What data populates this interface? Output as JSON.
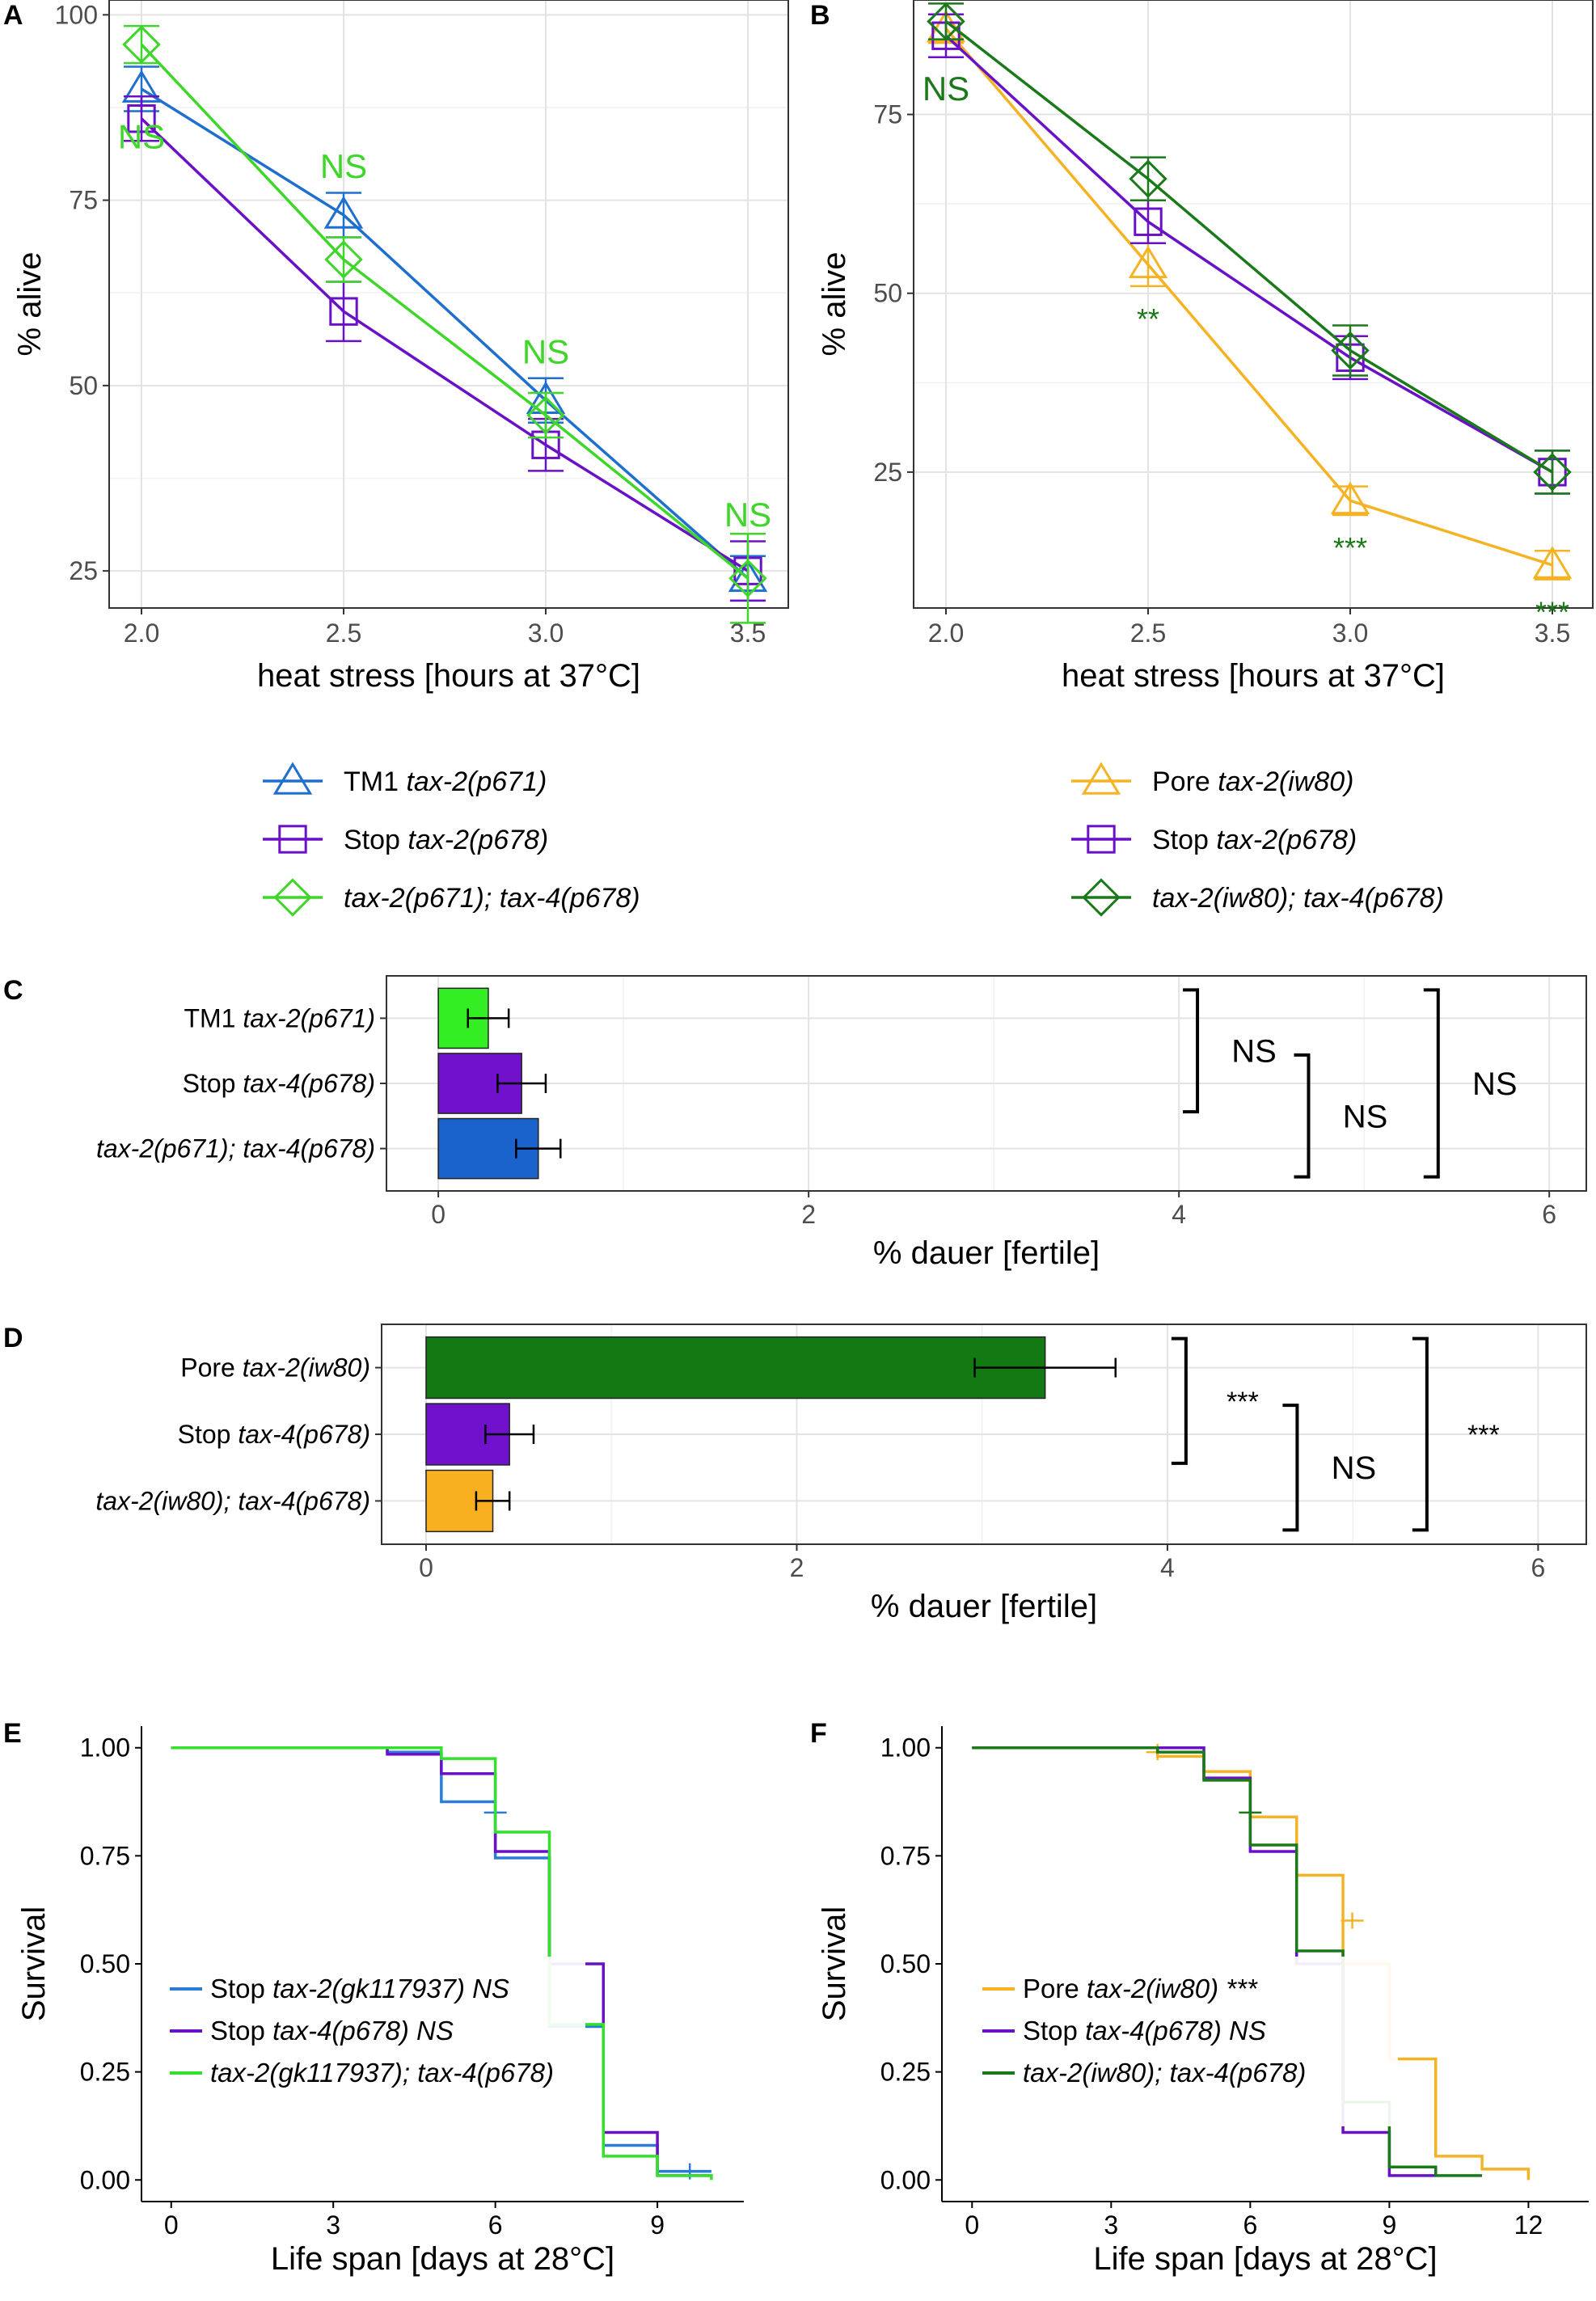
{
  "chart_data": [
    {
      "panel_letter": "A",
      "type": "line",
      "xlabel": "heat stress [hours at 37°C]",
      "ylabel": "% alive",
      "x": [
        2.0,
        2.5,
        3.0,
        3.5
      ],
      "xticks": [
        "2.0",
        "2.5",
        "3.0",
        "3.5"
      ],
      "yticks": [
        25,
        50,
        75,
        100
      ],
      "ylim": [
        20,
        102
      ],
      "series": [
        {
          "name": "TM1 tax-2(p671)",
          "label": [
            {
              "t": "TM1 ",
              "i": false
            },
            {
              "t": "tax-2(p671)",
              "i": true
            }
          ],
          "color": "#1f6fce",
          "shape": "triangle",
          "values": [
            90,
            73,
            48,
            24
          ],
          "err": [
            3,
            3,
            3,
            3
          ]
        },
        {
          "name": "Stop tax-2(p678)",
          "label": [
            {
              "t": "Stop ",
              "i": false
            },
            {
              "t": "tax-2(p678)",
              "i": true
            }
          ],
          "color": "#6a11c8",
          "shape": "square",
          "values": [
            86,
            60,
            42,
            25
          ],
          "err": [
            3,
            4,
            3.5,
            4
          ]
        },
        {
          "name": "tax-2(p671); tax-4(p678)",
          "label": [
            {
              "t": "tax-2(p671); tax-4(p678)",
              "i": true
            }
          ],
          "color": "#3fd62a",
          "shape": "diamond",
          "values": [
            96,
            67,
            46,
            24
          ],
          "err": [
            2.5,
            3,
            3,
            6
          ]
        }
      ],
      "annotations": [
        {
          "x": 2.0,
          "y": 82,
          "text": "NS",
          "color": "#3fd62a"
        },
        {
          "x": 2.5,
          "y": 78,
          "text": "NS",
          "color": "#3fd62a"
        },
        {
          "x": 3.0,
          "y": 53,
          "text": "NS",
          "color": "#3fd62a"
        },
        {
          "x": 3.5,
          "y": 31,
          "text": "NS",
          "color": "#3fd62a"
        }
      ]
    },
    {
      "panel_letter": "B",
      "type": "line",
      "xlabel": "heat stress [hours at 37°C]",
      "ylabel": "% alive",
      "x": [
        2.0,
        2.5,
        3.0,
        3.5
      ],
      "xticks": [
        "2.0",
        "2.5",
        "3.0",
        "3.5"
      ],
      "yticks": [
        25,
        50,
        75
      ],
      "ylim": [
        6,
        91
      ],
      "series": [
        {
          "name": "Pore tax-2(iw80)",
          "label": [
            {
              "t": "Pore ",
              "i": false
            },
            {
              "t": "tax-2(iw80)",
              "i": true
            }
          ],
          "color": "#f5b324",
          "shape": "triangle",
          "values": [
            87,
            54,
            21,
            12
          ],
          "err": [
            2,
            3,
            2,
            2
          ]
        },
        {
          "name": "Stop tax-2(p678)",
          "label": [
            {
              "t": "Stop ",
              "i": false
            },
            {
              "t": "tax-2(p678)",
              "i": true
            }
          ],
          "color": "#6a11c8",
          "shape": "square",
          "values": [
            86,
            60,
            41,
            25
          ],
          "err": [
            3,
            3,
            3,
            3
          ]
        },
        {
          "name": "tax-2(iw80); tax-4(p678)",
          "label": [
            {
              "t": "tax-2(iw80); tax-4(p678)",
              "i": true
            }
          ],
          "color": "#1a7a1a",
          "shape": "diamond",
          "values": [
            88,
            66,
            42,
            25
          ],
          "err": [
            2.5,
            3,
            3.5,
            3
          ]
        }
      ],
      "annotations": [
        {
          "x": 2.0,
          "y": 77,
          "text": "NS",
          "color": "#1a7a1a"
        },
        {
          "x": 2.5,
          "y": 45,
          "text": "**",
          "color": "#1a7a1a"
        },
        {
          "x": 3.0,
          "y": 13,
          "text": "***",
          "color": "#1a7a1a"
        },
        {
          "x": 3.5,
          "y": 4,
          "text": "***",
          "color": "#1a7a1a"
        }
      ]
    },
    {
      "panel_letter": "C",
      "type": "bar",
      "orientation": "horizontal",
      "xlabel": "% dauer [fertile]",
      "categories": [
        [
          {
            "t": "TM1 ",
            "i": false
          },
          {
            "t": "tax-2(p671)",
            "i": true
          }
        ],
        [
          {
            "t": "Stop ",
            "i": false
          },
          {
            "t": "tax-4(p678)",
            "i": true
          }
        ],
        [
          {
            "t": "tax-2(p671); tax-4(p678)",
            "i": true
          }
        ]
      ],
      "values": [
        0.27,
        0.45,
        0.54
      ],
      "err": [
        0.11,
        0.13,
        0.12
      ],
      "colors": [
        "#33ee22",
        "#7011cc",
        "#1a62cc"
      ],
      "xticks": [
        0,
        2,
        4,
        6
      ],
      "xlim": [
        -0.28,
        6.2
      ],
      "significance": [
        {
          "from": 0,
          "to": 1,
          "text": "NS"
        },
        {
          "from": 1,
          "to": 2,
          "text": "NS"
        },
        {
          "from": 0,
          "to": 2,
          "text": "NS"
        }
      ]
    },
    {
      "panel_letter": "D",
      "type": "bar",
      "orientation": "horizontal",
      "xlabel": "% dauer [fertile]",
      "categories": [
        [
          {
            "t": "Pore ",
            "i": false
          },
          {
            "t": "tax-2(iw80)",
            "i": true
          }
        ],
        [
          {
            "t": "Stop ",
            "i": false
          },
          {
            "t": "tax-4(p678)",
            "i": true
          }
        ],
        [
          {
            "t": "tax-2(iw80); tax-4(p678)",
            "i": true
          }
        ]
      ],
      "values": [
        3.34,
        0.45,
        0.36
      ],
      "err": [
        0.38,
        0.13,
        0.09
      ],
      "colors": [
        "#137a13",
        "#7011cc",
        "#f8b020"
      ],
      "xticks": [
        0,
        2,
        4,
        6
      ],
      "xlim": [
        -0.24,
        6.26
      ],
      "significance": [
        {
          "from": 0,
          "to": 1,
          "text": "***"
        },
        {
          "from": 1,
          "to": 2,
          "text": "NS"
        },
        {
          "from": 0,
          "to": 2,
          "text": "***"
        }
      ]
    },
    {
      "panel_letter": "E",
      "type": "line",
      "subtype": "survival-step",
      "xlabel": "Life span [days at 28°C]",
      "ylabel": "Survival",
      "xticks": [
        0,
        3,
        6,
        9
      ],
      "yticks": [
        "0.00",
        "0.25",
        "0.50",
        "0.75",
        "1.00"
      ],
      "xlim": [
        -0.55,
        10.6
      ],
      "ylim": [
        -0.05,
        1.05
      ],
      "series": [
        {
          "name": "Stop tax-2(gk117937) NS",
          "label": [
            {
              "t": "Stop ",
              "i": false
            },
            {
              "t": "tax-2(gk117937) NS",
              "i": true
            }
          ],
          "color": "#2b7bd9",
          "steps": [
            [
              0,
              1.0
            ],
            [
              4,
              0.99
            ],
            [
              5,
              0.875
            ],
            [
              6,
              0.745
            ],
            [
              7,
              0.355
            ],
            [
              8,
              0.08
            ],
            [
              9,
              0.02
            ],
            [
              10,
              0.02
            ]
          ],
          "censor": [
            [
              6,
              0.85
            ],
            [
              9.6,
              0.02
            ]
          ]
        },
        {
          "name": "Stop tax-4(p678) NS",
          "label": [
            {
              "t": "Stop ",
              "i": false
            },
            {
              "t": "tax-4(p678) NS",
              "i": true
            }
          ],
          "color": "#6a11c8",
          "steps": [
            [
              0,
              1.0
            ],
            [
              4,
              0.985
            ],
            [
              5,
              0.94
            ],
            [
              6,
              0.76
            ],
            [
              7,
              0.5
            ],
            [
              8,
              0.11
            ],
            [
              9,
              0.01
            ],
            [
              10,
              0.01
            ]
          ],
          "censor": []
        },
        {
          "name": "tax-2(gk117937); tax-4(p678)",
          "label": [
            {
              "t": "tax-2(gk117937); tax-4(p678)",
              "i": true
            }
          ],
          "color": "#33e12b",
          "steps": [
            [
              0,
              1.0
            ],
            [
              5,
              0.975
            ],
            [
              6,
              0.805
            ],
            [
              7,
              0.36
            ],
            [
              8,
              0.055
            ],
            [
              9,
              0.01
            ],
            [
              10,
              0.0
            ]
          ],
          "censor": []
        }
      ]
    },
    {
      "panel_letter": "F",
      "type": "line",
      "subtype": "survival-step",
      "xlabel": "Life span [days at 28°C]",
      "ylabel": "Survival",
      "xticks": [
        0,
        3,
        6,
        9,
        12
      ],
      "yticks": [
        "0.00",
        "0.25",
        "0.50",
        "0.75",
        "1.00"
      ],
      "xlim": [
        -0.65,
        13.3
      ],
      "ylim": [
        -0.05,
        1.05
      ],
      "series": [
        {
          "name": "Pore tax-2(iw80) ***",
          "label": [
            {
              "t": "Pore ",
              "i": false
            },
            {
              "t": "tax-2(iw80) ***",
              "i": true
            }
          ],
          "color": "#f5b324",
          "steps": [
            [
              0,
              1.0
            ],
            [
              4,
              0.98
            ],
            [
              5,
              0.945
            ],
            [
              6,
              0.84
            ],
            [
              7,
              0.705
            ],
            [
              8,
              0.5
            ],
            [
              9,
              0.28
            ],
            [
              10,
              0.055
            ],
            [
              11,
              0.025
            ],
            [
              12,
              0.0
            ]
          ],
          "censor": [
            [
              4,
              0.99
            ],
            [
              8.2,
              0.6
            ]
          ]
        },
        {
          "name": "Stop tax-4(p678) NS",
          "label": [
            {
              "t": "Stop ",
              "i": false
            },
            {
              "t": "tax-4(p678) NS",
              "i": true
            }
          ],
          "color": "#6a11c8",
          "steps": [
            [
              0,
              1.0
            ],
            [
              5,
              0.93
            ],
            [
              6,
              0.76
            ],
            [
              7,
              0.5
            ],
            [
              8,
              0.11
            ],
            [
              9,
              0.01
            ],
            [
              10,
              0.01
            ]
          ],
          "censor": []
        },
        {
          "name": "tax-2(iw80); tax-4(p678)",
          "label": [
            {
              "t": "tax-2(iw80); tax-4(p678)",
              "i": true
            }
          ],
          "color": "#1a7a1a",
          "steps": [
            [
              0,
              1.0
            ],
            [
              4,
              0.99
            ],
            [
              5,
              0.925
            ],
            [
              6,
              0.775
            ],
            [
              7,
              0.53
            ],
            [
              8,
              0.18
            ],
            [
              9,
              0.03
            ],
            [
              10,
              0.01
            ],
            [
              11,
              0.01
            ]
          ],
          "censor": [
            [
              6,
              0.85
            ]
          ]
        }
      ]
    }
  ]
}
